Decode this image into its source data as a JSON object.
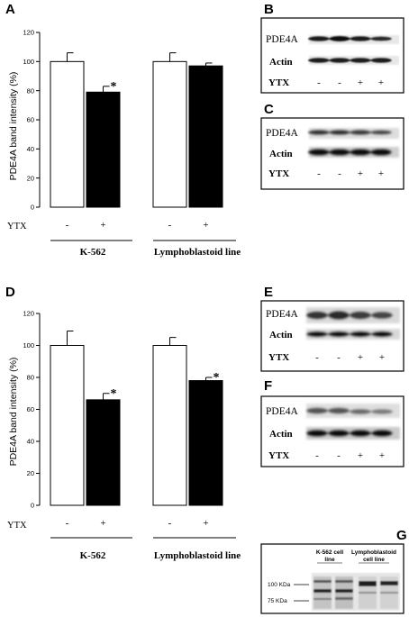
{
  "chart_data": [
    {
      "type": "bar",
      "panel": "A",
      "ylabel": "PDE4A band intensity (%)",
      "ylim": [
        0,
        120
      ],
      "yticks": [
        "0",
        "20",
        "40",
        "60",
        "80",
        "100",
        "120"
      ],
      "row_label": "YTX",
      "groups": [
        "K-562",
        "Lymphoblastoid line"
      ],
      "categories": [
        "-",
        "+",
        "-",
        "+"
      ],
      "values": [
        100,
        79,
        100,
        97
      ],
      "errors": [
        6,
        4,
        6,
        2
      ],
      "fills": [
        "#ffffff",
        "#000000",
        "#ffffff",
        "#000000"
      ],
      "significant": [
        false,
        true,
        false,
        false
      ],
      "sig_mark": "*"
    },
    {
      "type": "bar",
      "panel": "D",
      "ylabel": "PDE4A band intensity (%)",
      "ylim": [
        0,
        120
      ],
      "yticks": [
        "0",
        "20",
        "40",
        "60",
        "80",
        "100",
        "120"
      ],
      "row_label": "YTX",
      "groups": [
        "K-562",
        "Lymphoblastoid line"
      ],
      "categories": [
        "-",
        "+",
        "-",
        "+"
      ],
      "values": [
        100,
        66,
        100,
        78
      ],
      "errors": [
        9,
        4,
        5,
        2
      ],
      "fills": [
        "#ffffff",
        "#000000",
        "#ffffff",
        "#000000"
      ],
      "significant": [
        false,
        true,
        false,
        true
      ],
      "sig_mark": "*"
    }
  ],
  "blots": [
    {
      "panel": "B",
      "band1": "PDE4A",
      "band2": "Actin",
      "row_label": "YTX",
      "lanes": [
        "-",
        "-",
        "+",
        "+"
      ]
    },
    {
      "panel": "C",
      "band1": "PDE4A",
      "band2": "Actin",
      "row_label": "YTX",
      "lanes": [
        "-",
        "-",
        "+",
        "+"
      ]
    },
    {
      "panel": "E",
      "band1": "PDE4A",
      "band2": "Actin",
      "row_label": "YTX",
      "lanes": [
        "-",
        "-",
        "+",
        "+"
      ]
    },
    {
      "panel": "F",
      "band1": "PDE4A",
      "band2": "Actin",
      "row_label": "YTX",
      "lanes": [
        "-",
        "-",
        "+",
        "+"
      ]
    }
  ],
  "gel": {
    "panel": "G",
    "lane_group_1": [
      "K-562 cell",
      "line"
    ],
    "lane_group_2": [
      "Lymphoblastoid",
      "cell line"
    ],
    "markers": [
      "100 KDa",
      "75 KDa"
    ]
  }
}
